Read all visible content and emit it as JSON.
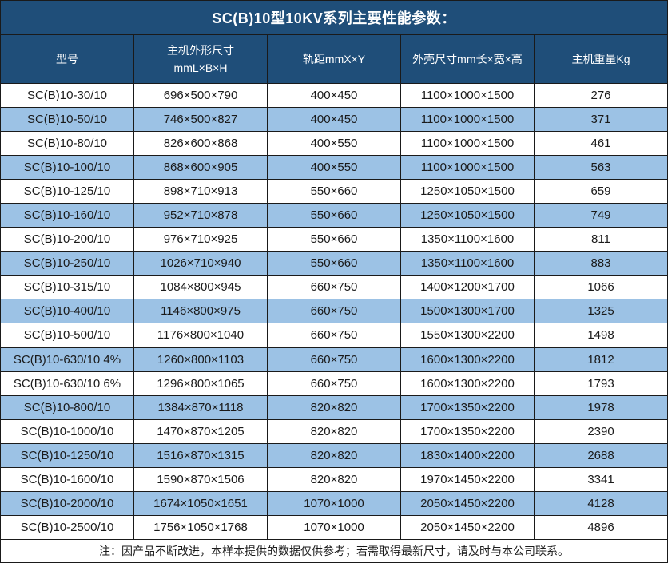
{
  "title": "SC(B)10型10KV系列主要性能参数：",
  "colors": {
    "title_bg": "#1F4E79",
    "header_bg": "#1F4E79",
    "header_text": "#FFFFFF",
    "row_bg": "#FFFFFF",
    "row_alt_bg": "#9CC2E5",
    "border": "#1A1A1A",
    "body_text": "#000000"
  },
  "table": {
    "columns": [
      {
        "label": "型号"
      },
      {
        "label": "主机外形尺寸",
        "sublabel": "mmL×B×H"
      },
      {
        "label": "轨距mmX×Y"
      },
      {
        "label": "外壳尺寸mm长×宽×高"
      },
      {
        "label": "主机重量Kg"
      }
    ],
    "rows": [
      [
        "SC(B)10-30/10",
        "696×500×790",
        "400×450",
        "1100×1000×1500",
        "276"
      ],
      [
        "SC(B)10-50/10",
        "746×500×827",
        "400×450",
        "1100×1000×1500",
        "371"
      ],
      [
        "SC(B)10-80/10",
        "826×600×868",
        "400×550",
        "1100×1000×1500",
        "461"
      ],
      [
        "SC(B)10-100/10",
        "868×600×905",
        "400×550",
        "1100×1000×1500",
        "563"
      ],
      [
        "SC(B)10-125/10",
        "898×710×913",
        "550×660",
        "1250×1050×1500",
        "659"
      ],
      [
        "SC(B)10-160/10",
        "952×710×878",
        "550×660",
        "1250×1050×1500",
        "749"
      ],
      [
        "SC(B)10-200/10",
        "976×710×925",
        "550×660",
        "1350×1100×1600",
        "811"
      ],
      [
        "SC(B)10-250/10",
        "1026×710×940",
        "550×660",
        "1350×1100×1600",
        "883"
      ],
      [
        "SC(B)10-315/10",
        "1084×800×945",
        "660×750",
        "1400×1200×1700",
        "1066"
      ],
      [
        "SC(B)10-400/10",
        "1146×800×975",
        "660×750",
        "1500×1300×1700",
        "1325"
      ],
      [
        "SC(B)10-500/10",
        "1176×800×1040",
        "660×750",
        "1550×1300×2200",
        "1498"
      ],
      [
        "SC(B)10-630/10 4%",
        "1260×800×1103",
        "660×750",
        "1600×1300×2200",
        "1812"
      ],
      [
        "SC(B)10-630/10 6%",
        "1296×800×1065",
        "660×750",
        "1600×1300×2200",
        "1793"
      ],
      [
        "SC(B)10-800/10",
        "1384×870×1118",
        "820×820",
        "1700×1350×2200",
        "1978"
      ],
      [
        "SC(B)10-1000/10",
        "1470×870×1205",
        "820×820",
        "1700×1350×2200",
        "2390"
      ],
      [
        "SC(B)10-1250/10",
        "1516×870×1315",
        "820×820",
        "1830×1400×2200",
        "2688"
      ],
      [
        "SC(B)10-1600/10",
        "1590×870×1506",
        "820×820",
        "1970×1450×2200",
        "3341"
      ],
      [
        "SC(B)10-2000/10",
        "1674×1050×1651",
        "1070×1000",
        "2050×1450×2200",
        "4128"
      ],
      [
        "SC(B)10-2500/10",
        "1756×1050×1768",
        "1070×1000",
        "2050×1450×2200",
        "4896"
      ]
    ]
  },
  "footer_note": "注：因产品不断改进，本样本提供的数据仅供参考；若需取得最新尺寸，请及时与本公司联系。"
}
